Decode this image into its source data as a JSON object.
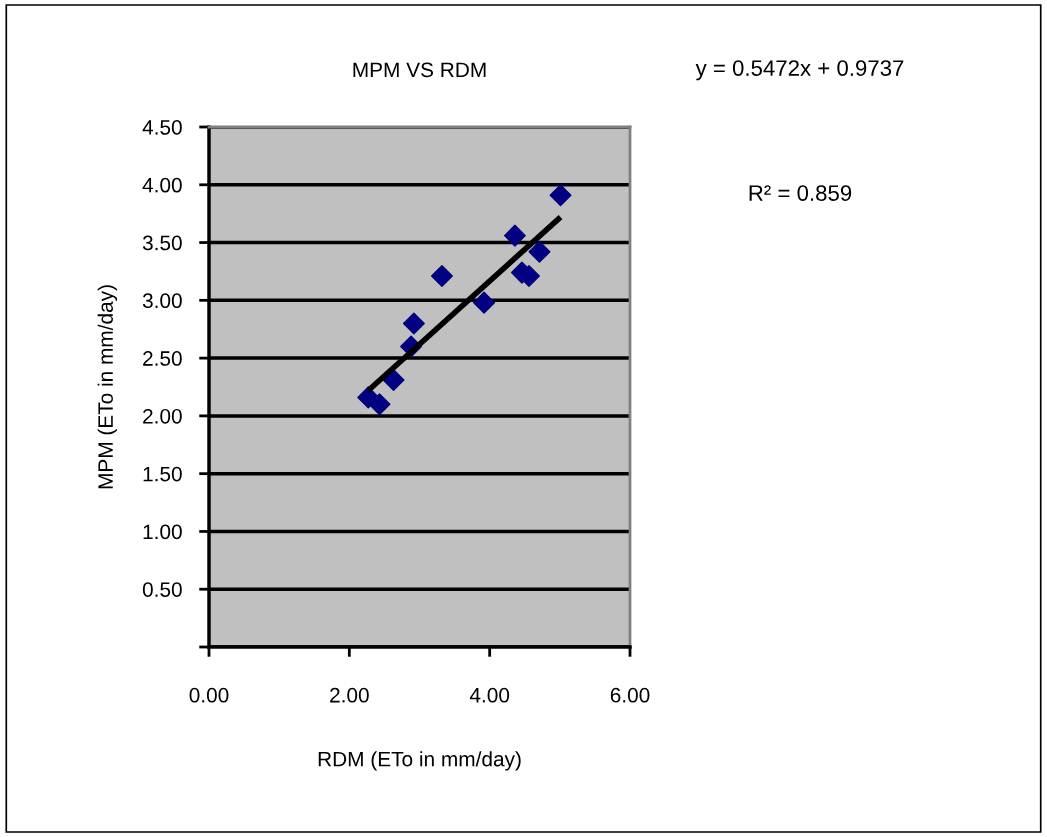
{
  "chart_data": {
    "type": "scatter",
    "title": "MPM VS RDM",
    "xlabel": "RDM (ETo in mm/day)",
    "ylabel": "MPM (ETo in mm/day)",
    "annotations": [
      "y = 0.5472x + 0.9737",
      "R² = 0.859"
    ],
    "series": [
      {
        "color": "#000080",
        "marker": "diamond",
        "x": [
          2.27,
          2.43,
          2.63,
          2.88,
          2.92,
          3.32,
          3.92,
          4.36,
          4.46,
          4.56,
          4.71,
          5.01
        ],
        "values": [
          2.16,
          2.1,
          2.31,
          2.6,
          2.8,
          3.21,
          2.98,
          3.56,
          3.24,
          3.21,
          3.42,
          3.91
        ]
      },
      {
        "type": "line",
        "color": "#000000",
        "marker": "none",
        "x": [
          2.27,
          5.01
        ],
        "values": [
          2.22,
          3.72
        ]
      }
    ],
    "xlim": [
      0,
      6
    ],
    "xticks": [
      {
        "value": 0,
        "label": "0.00"
      },
      {
        "value": 2,
        "label": "2.00"
      },
      {
        "value": 4,
        "label": "4.00"
      },
      {
        "value": 6,
        "label": "6.00"
      }
    ],
    "ylim": [
      0,
      4.5
    ],
    "yticks": [
      {
        "value": 0,
        "label": null
      },
      {
        "value": 0.5,
        "label": "0.50"
      },
      {
        "value": 1,
        "label": "1.00"
      },
      {
        "value": 1.5,
        "label": "1.50"
      },
      {
        "value": 2,
        "label": "2.00"
      },
      {
        "value": 2.5,
        "label": "2.50"
      },
      {
        "value": 3,
        "label": "3.00"
      },
      {
        "value": 3.5,
        "label": "3.50"
      },
      {
        "value": 4,
        "label": "4.00"
      },
      {
        "value": 4.5,
        "label": "4.50"
      }
    ],
    "grid": "y",
    "legend": false
  }
}
